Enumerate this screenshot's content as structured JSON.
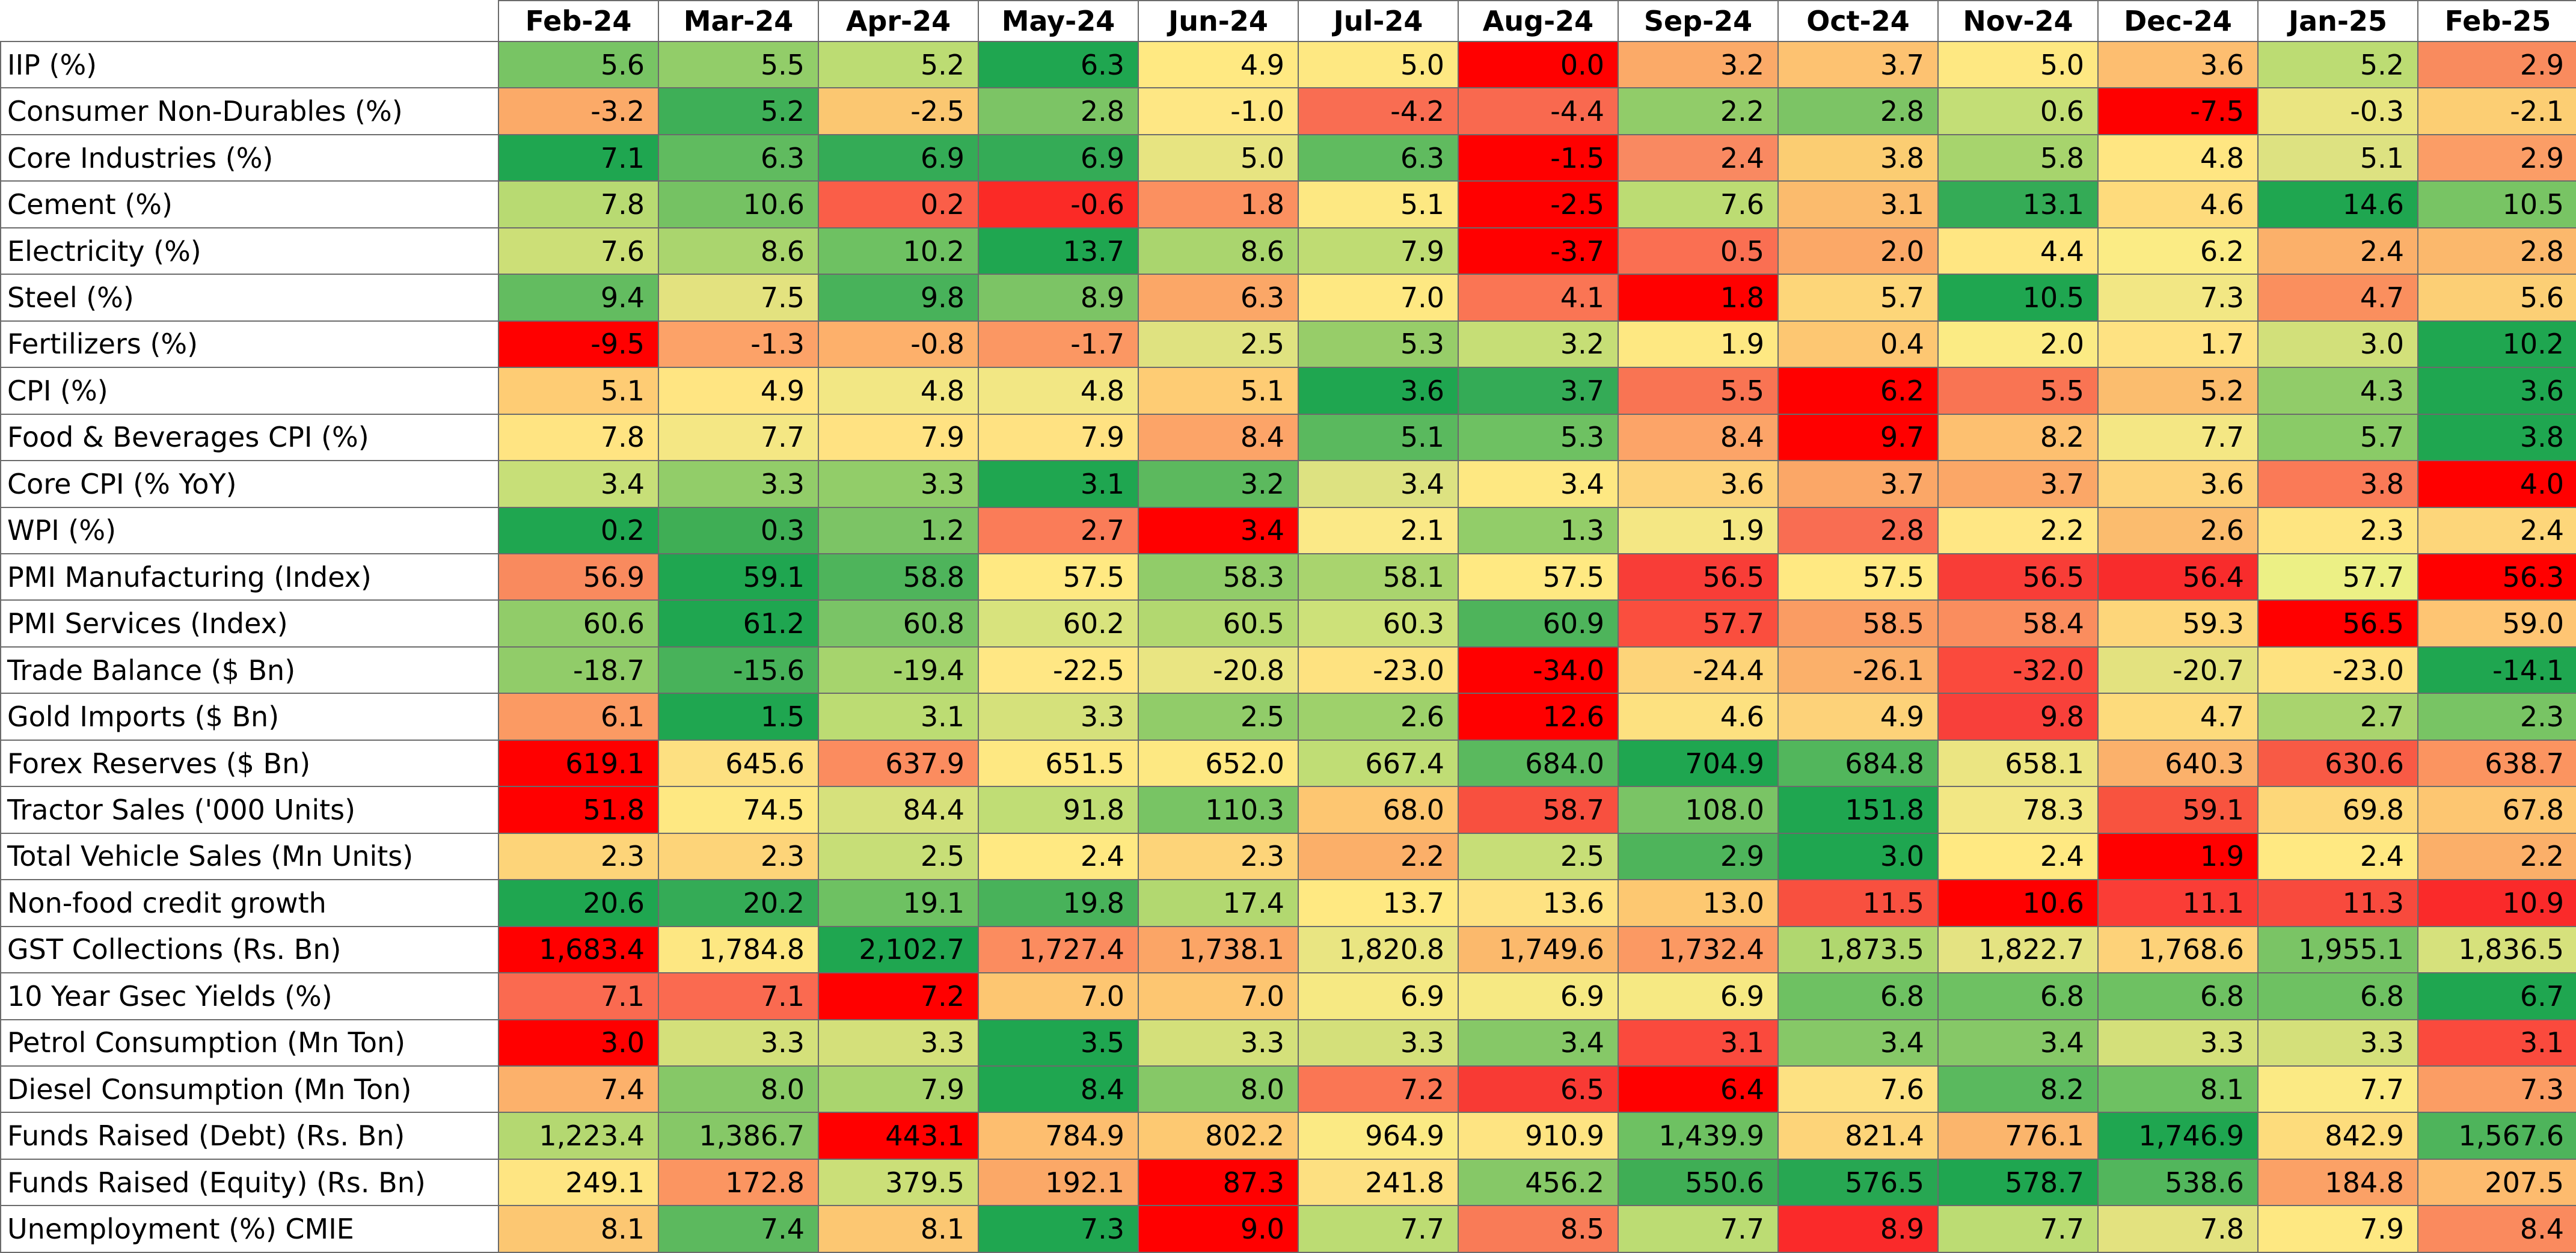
{
  "months": [
    "Feb-24",
    "Mar-24",
    "Apr-24",
    "May-24",
    "Jun-24",
    "Jul-24",
    "Aug-24",
    "Sep-24",
    "Oct-24",
    "Nov-24",
    "Dec-24",
    "Jan-25",
    "Feb-25"
  ],
  "rows": [
    {
      "label": "IIP (%)",
      "values": [
        "5.6",
        "5.5",
        "5.2",
        "6.3",
        "4.9",
        "5.0",
        "0.0",
        "3.2",
        "3.7",
        "5.0",
        "3.6",
        "5.2",
        "2.9"
      ],
      "colors": [
        "#78c464",
        "#92cd69",
        "#bcdc73",
        "#1fa650",
        "#ffe982",
        "#fee882",
        "#ff0000",
        "#fbaa68",
        "#fdc271",
        "#fee882",
        "#fdbe70",
        "#bcdc73",
        "#f98b5e"
      ]
    },
    {
      "label": "Consumer Non-Durables (%)",
      "values": [
        "-3.2",
        "5.2",
        "-2.5",
        "2.8",
        "-1.0",
        "-4.2",
        "-4.4",
        "2.2",
        "2.8",
        "0.6",
        "-7.5",
        "-0.3",
        "-2.1"
      ],
      "colors": [
        "#fbaa68",
        "#3eaf57",
        "#fbc771",
        "#7cc465",
        "#fee784",
        "#f96d52",
        "#f9694f",
        "#91cc69",
        "#7cc465",
        "#c3de76",
        "#fe0000",
        "#eae581",
        "#fcce73"
      ]
    },
    {
      "label": "Core Industries (%)",
      "values": [
        "7.1",
        "6.3",
        "6.9",
        "6.9",
        "5.0",
        "6.3",
        "-1.5",
        "2.4",
        "3.8",
        "5.8",
        "4.8",
        "5.1",
        "2.9"
      ],
      "colors": [
        "#1fa650",
        "#60bb5f",
        "#34ab56",
        "#34ab56",
        "#e7e481",
        "#60bb5f",
        "#ff0000",
        "#f98961",
        "#fbcd72",
        "#a7d46d",
        "#ffe682",
        "#dde281",
        "#fb9d66"
      ]
    },
    {
      "label": "Cement (%)",
      "values": [
        "7.8",
        "10.6",
        "0.2",
        "-0.6",
        "1.8",
        "5.1",
        "-2.5",
        "7.6",
        "3.1",
        "13.1",
        "4.6",
        "14.6",
        "10.5"
      ],
      "colors": [
        "#b8da72",
        "#75c263",
        "#fa5e48",
        "#fb2a26",
        "#fb9060",
        "#fde882",
        "#ff0000",
        "#bcdc73",
        "#fbbb6d",
        "#34ab56",
        "#fedb7c",
        "#1fa650",
        "#78c464"
      ]
    },
    {
      "label": "Electricity (%)",
      "values": [
        "7.6",
        "8.6",
        "10.2",
        "13.7",
        "8.6",
        "7.9",
        "-3.7",
        "0.5",
        "2.0",
        "4.4",
        "6.2",
        "2.4",
        "2.8"
      ],
      "colors": [
        "#ccdf77",
        "#aad56e",
        "#6ec162",
        "#1fa650",
        "#aad56e",
        "#bfdc73",
        "#ff0000",
        "#fa6f52",
        "#fba867",
        "#ffe682",
        "#fbec85",
        "#fbb06a",
        "#fbb86c"
      ]
    },
    {
      "label": "Steel (%)",
      "values": [
        "9.4",
        "7.5",
        "9.8",
        "8.9",
        "6.3",
        "7.0",
        "4.1",
        "1.8",
        "5.7",
        "10.5",
        "7.3",
        "4.7",
        "5.6"
      ],
      "colors": [
        "#63bc60",
        "#e3e27f",
        "#48b25a",
        "#7cc465",
        "#fba767",
        "#fee882",
        "#fa7554",
        "#ff0000",
        "#fdd679",
        "#1fa650",
        "#f2e784",
        "#fa8f5e",
        "#fccf75"
      ]
    },
    {
      "label": "Fertilizers (%)",
      "values": [
        "-9.5",
        "-1.3",
        "-0.8",
        "-1.7",
        "2.5",
        "5.3",
        "3.2",
        "1.9",
        "0.4",
        "2.0",
        "1.7",
        "3.0",
        "10.2"
      ],
      "colors": [
        "#ff0000",
        "#fca268",
        "#fdb06b",
        "#fb9763",
        "#dfe280",
        "#97cd69",
        "#c6de76",
        "#fee882",
        "#fdc772",
        "#fbeb84",
        "#fee282",
        "#d2e07a",
        "#1fa650"
      ]
    },
    {
      "label": "CPI (%)",
      "values": [
        "5.1",
        "4.9",
        "4.8",
        "4.8",
        "5.1",
        "3.6",
        "3.7",
        "5.5",
        "6.2",
        "5.5",
        "5.2",
        "4.3",
        "3.6"
      ],
      "colors": [
        "#fecc74",
        "#ffe582",
        "#f2e784",
        "#f2e784",
        "#fecc74",
        "#1fa650",
        "#34ab56",
        "#f97453",
        "#ff0000",
        "#f97453",
        "#fbbd6e",
        "#91cc69",
        "#1fa650"
      ]
    },
    {
      "label": "Food & Beverages CPI (%)",
      "values": [
        "7.8",
        "7.7",
        "7.9",
        "7.9",
        "8.4",
        "5.1",
        "5.3",
        "8.4",
        "9.7",
        "8.2",
        "7.7",
        "5.7",
        "3.8"
      ],
      "colors": [
        "#ffe482",
        "#f4e784",
        "#ffe282",
        "#ffe282",
        "#fca468",
        "#5ab95e",
        "#6ec162",
        "#fca468",
        "#ff0000",
        "#fdc070",
        "#f4e784",
        "#8acb67",
        "#1fa650"
      ]
    },
    {
      "label": "Core CPI (% YoY)",
      "values": [
        "3.4",
        "3.3",
        "3.3",
        "3.1",
        "3.2",
        "3.4",
        "3.4",
        "3.6",
        "3.7",
        "3.7",
        "3.6",
        "3.8",
        "4.0"
      ],
      "colors": [
        "#c7df78",
        "#92cd69",
        "#92cd69",
        "#1fa650",
        "#5cb95e",
        "#dde281",
        "#fee882",
        "#fdd37a",
        "#fba767",
        "#fba767",
        "#fdd37a",
        "#fa7a57",
        "#ff0000"
      ]
    },
    {
      "label": "WPI (%)",
      "values": [
        "0.2",
        "0.3",
        "1.2",
        "2.7",
        "3.4",
        "2.1",
        "1.3",
        "1.9",
        "2.8",
        "2.2",
        "2.6",
        "2.3",
        "2.4"
      ],
      "colors": [
        "#1fa650",
        "#3fae55",
        "#7cc465",
        "#fa7c58",
        "#ff0000",
        "#fbe987",
        "#92cd69",
        "#f4e784",
        "#f96d52",
        "#ffe784",
        "#fbbc6e",
        "#fee581",
        "#fdd67a"
      ]
    },
    {
      "label": "PMI Manufacturing (Index)",
      "values": [
        "56.9",
        "59.1",
        "58.8",
        "57.5",
        "58.3",
        "58.1",
        "57.5",
        "56.5",
        "57.5",
        "56.5",
        "56.4",
        "57.7",
        "56.3"
      ],
      "colors": [
        "#f98a5e",
        "#1fa650",
        "#4eb45b",
        "#ffe982",
        "#91cc69",
        "#a9d46e",
        "#ffe982",
        "#f83d37",
        "#ffe982",
        "#f83d37",
        "#f82c2c",
        "#ecf085",
        "#ff0000"
      ]
    },
    {
      "label": "PMI Services (Index)",
      "values": [
        "60.6",
        "61.2",
        "60.8",
        "60.2",
        "60.5",
        "60.3",
        "60.9",
        "57.7",
        "58.5",
        "58.4",
        "59.3",
        "56.5",
        "59.0"
      ],
      "colors": [
        "#91cc69",
        "#1fa650",
        "#7ac466",
        "#d8e37d",
        "#b2d870",
        "#cde179",
        "#4eb45b",
        "#fa4e3e",
        "#fa9c63",
        "#fa8d5e",
        "#fdd67a",
        "#ff0000",
        "#fec573"
      ]
    },
    {
      "label": "Trade Balance ($ Bn)",
      "values": [
        "-18.7",
        "-15.6",
        "-19.4",
        "-22.5",
        "-20.8",
        "-23.0",
        "-34.0",
        "-24.4",
        "-26.1",
        "-32.0",
        "-20.7",
        "-23.0",
        "-14.1"
      ],
      "colors": [
        "#91cc69",
        "#48b25a",
        "#a6d46d",
        "#ffe784",
        "#e9e582",
        "#fee280",
        "#ff0000",
        "#fdd479",
        "#fbb06a",
        "#fa4a3d",
        "#e3e27f",
        "#fee280",
        "#1fa650"
      ]
    },
    {
      "label": "Gold Imports ($ Bn)",
      "values": [
        "6.1",
        "1.5",
        "3.1",
        "3.3",
        "2.5",
        "2.6",
        "12.6",
        "4.6",
        "4.9",
        "9.8",
        "4.7",
        "2.7",
        "2.3"
      ],
      "colors": [
        "#fb9a63",
        "#1fa650",
        "#bcdc73",
        "#d5e17b",
        "#91cc69",
        "#9ed16b",
        "#ff0000",
        "#fde180",
        "#fdd279",
        "#f8403a",
        "#fddb7c",
        "#a9d46e",
        "#78c464"
      ]
    },
    {
      "label": "Forex Reserves ($ Bn)",
      "values": [
        "619.1",
        "645.6",
        "637.9",
        "651.5",
        "652.0",
        "667.4",
        "684.0",
        "704.9",
        "684.8",
        "658.1",
        "640.3",
        "630.6",
        "638.7"
      ],
      "colors": [
        "#ff0000",
        "#fde081",
        "#fb8c5f",
        "#fee882",
        "#fde882",
        "#c0dd75",
        "#5ab95e",
        "#1fa650",
        "#52b65c",
        "#ebe582",
        "#fbb16b",
        "#f85a45",
        "#fb9460"
      ]
    },
    {
      "label": "Tractor Sales ('000 Units)",
      "values": [
        "51.8",
        "74.5",
        "84.4",
        "91.8",
        "110.3",
        "68.0",
        "58.7",
        "108.0",
        "151.8",
        "78.3",
        "59.1",
        "69.8",
        "67.8"
      ],
      "colors": [
        "#ff0000",
        "#fee882",
        "#d6e17c",
        "#c0dd75",
        "#78c464",
        "#fdc671",
        "#f8503f",
        "#7ac465",
        "#1fa650",
        "#f2e784",
        "#f8533f",
        "#fdd779",
        "#fdc671"
      ]
    },
    {
      "label": "Total Vehicle Sales (Mn Units)",
      "values": [
        "2.3",
        "2.3",
        "2.5",
        "2.4",
        "2.3",
        "2.2",
        "2.5",
        "2.9",
        "3.0",
        "2.4",
        "1.9",
        "2.4",
        "2.2"
      ],
      "colors": [
        "#fdd479",
        "#fdd479",
        "#c7de77",
        "#ffe982",
        "#fdd479",
        "#fbaf69",
        "#c7de77",
        "#4eb45b",
        "#1fa650",
        "#ffe982",
        "#ff0000",
        "#ffe982",
        "#fbaf69"
      ]
    },
    {
      "label": "Non-food credit growth",
      "values": [
        "20.6",
        "20.2",
        "19.1",
        "19.8",
        "17.4",
        "13.7",
        "13.6",
        "13.0",
        "11.5",
        "10.6",
        "11.1",
        "11.3",
        "10.9"
      ],
      "colors": [
        "#1fa650",
        "#34ab56",
        "#6ec162",
        "#48b25a",
        "#b2d870",
        "#ffe982",
        "#fee282",
        "#fdc871",
        "#f8503f",
        "#ff0000",
        "#fa3d36",
        "#f84a3d",
        "#fa2a2a"
      ]
    },
    {
      "label": "GST Collections (Rs. Bn)",
      "values": [
        "1,683.4",
        "1,784.8",
        "2,102.7",
        "1,727.4",
        "1,738.1",
        "1,820.8",
        "1,749.6",
        "1,732.4",
        "1,873.5",
        "1,822.7",
        "1,768.6",
        "1,955.1",
        "1,836.5"
      ],
      "colors": [
        "#ff0000",
        "#fde782",
        "#1fa650",
        "#fb8c5f",
        "#fba566",
        "#e9e582",
        "#fbb96c",
        "#fb9963",
        "#b0d76f",
        "#e4e382",
        "#fdd279",
        "#7ac465",
        "#d6e17c"
      ]
    },
    {
      "label": "10 Year Gsec Yields (%)",
      "values": [
        "7.1",
        "7.1",
        "7.2",
        "7.0",
        "7.0",
        "6.9",
        "6.9",
        "6.9",
        "6.8",
        "6.8",
        "6.8",
        "6.8",
        "6.7"
      ],
      "colors": [
        "#fa6a50",
        "#fa6a50",
        "#ff0000",
        "#fdc671",
        "#fdc671",
        "#f6e983",
        "#f6e983",
        "#f6e983",
        "#6ec162",
        "#6ec162",
        "#6ec162",
        "#6ec162",
        "#1fa650"
      ]
    },
    {
      "label": "Petrol Consumption (Mn Ton)",
      "values": [
        "3.0",
        "3.3",
        "3.3",
        "3.5",
        "3.3",
        "3.3",
        "3.4",
        "3.1",
        "3.4",
        "3.4",
        "3.3",
        "3.3",
        "3.1"
      ],
      "colors": [
        "#ff0000",
        "#d4e07a",
        "#d4e07a",
        "#1fa650",
        "#d4e07a",
        "#d4e07a",
        "#86c867",
        "#fa4a3d",
        "#86c867",
        "#86c867",
        "#d4e07a",
        "#d4e07a",
        "#fa4a3d"
      ]
    },
    {
      "label": "Diesel Consumption (Mn Ton)",
      "values": [
        "7.4",
        "8.0",
        "7.9",
        "8.4",
        "8.0",
        "7.2",
        "6.5",
        "6.4",
        "7.6",
        "8.2",
        "8.1",
        "7.7",
        "7.3"
      ],
      "colors": [
        "#fcb16b",
        "#86c867",
        "#aad56e",
        "#1fa650",
        "#86c867",
        "#fa7654",
        "#f83a34",
        "#ff0000",
        "#fde182",
        "#5ab95e",
        "#6ec162",
        "#fbea84",
        "#fb9d64"
      ]
    },
    {
      "label": "Funds Raised (Debt) (Rs. Bn)",
      "values": [
        "1,223.4",
        "1,386.7",
        "443.1",
        "784.9",
        "802.2",
        "964.9",
        "910.9",
        "1,439.9",
        "821.4",
        "776.1",
        "1,746.9",
        "842.9",
        "1,567.6"
      ],
      "colors": [
        "#b4d871",
        "#86c867",
        "#ff0000",
        "#fdbe6f",
        "#fdc972",
        "#fbea84",
        "#fee482",
        "#6ec162",
        "#fdd479",
        "#fbb56c",
        "#1fa650",
        "#fddc7c",
        "#4eb45b"
      ]
    },
    {
      "label": "Funds Raised (Equity) (Rs. Bn)",
      "values": [
        "249.1",
        "172.8",
        "379.5",
        "192.1",
        "87.3",
        "241.8",
        "456.2",
        "550.6",
        "576.5",
        "578.7",
        "538.6",
        "184.8",
        "207.5"
      ],
      "colors": [
        "#fee582",
        "#fb9561",
        "#cbdf78",
        "#fba867",
        "#ff0000",
        "#fde081",
        "#86c867",
        "#3fae55",
        "#27a752",
        "#1fa650",
        "#52b65c",
        "#fba166",
        "#fdbb6e"
      ]
    },
    {
      "label": "Unemployment (%) CMIE",
      "values": [
        "8.1",
        "7.4",
        "8.1",
        "7.3",
        "9.0",
        "7.7",
        "8.5",
        "7.7",
        "8.9",
        "7.7",
        "7.8",
        "7.9",
        "8.4"
      ],
      "colors": [
        "#fcc772",
        "#5cb95e",
        "#fcc772",
        "#1fa650",
        "#ff0000",
        "#bcdc73",
        "#f97b57",
        "#bcdc73",
        "#fa2a2a",
        "#bcdc73",
        "#e3e27f",
        "#fee882",
        "#fa8a5e"
      ]
    }
  ]
}
